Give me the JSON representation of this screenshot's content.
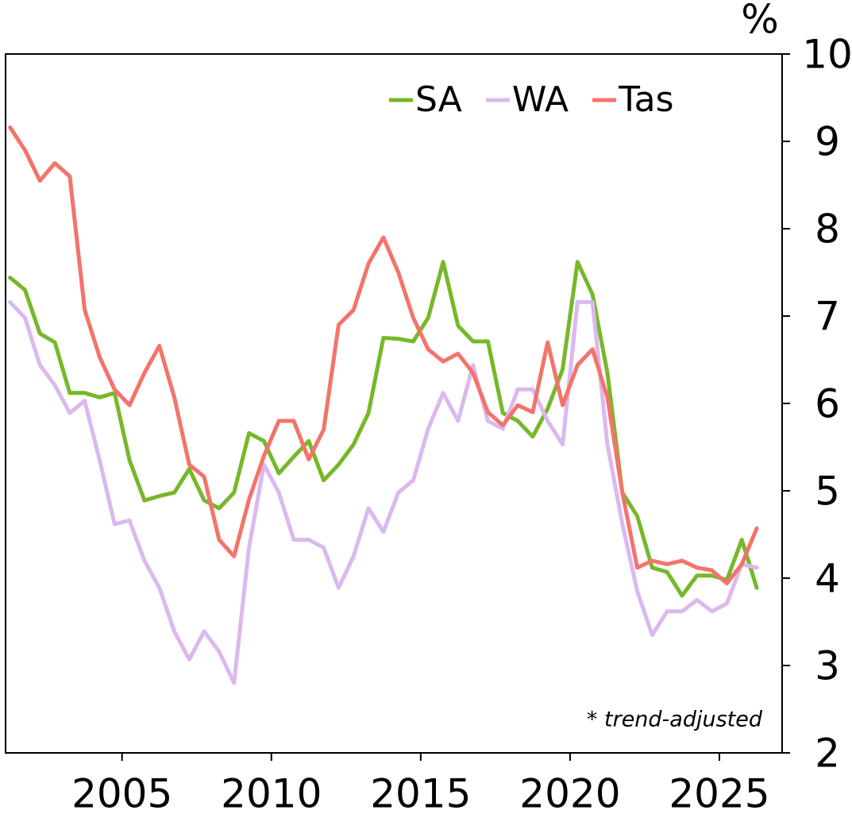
{
  "chart_data": {
    "type": "line",
    "y_unit": "%",
    "note": "* trend-adjusted",
    "x": [
      2001.25,
      2001.75,
      2002.25,
      2002.75,
      2003.25,
      2003.75,
      2004.25,
      2004.75,
      2005.25,
      2005.75,
      2006.25,
      2006.75,
      2007.25,
      2007.75,
      2008.25,
      2008.75,
      2009.25,
      2009.75,
      2010.25,
      2010.75,
      2011.25,
      2011.75,
      2012.25,
      2012.75,
      2013.25,
      2013.75,
      2014.25,
      2014.75,
      2015.25,
      2015.75,
      2016.25,
      2016.75,
      2017.25,
      2017.75,
      2018.25,
      2018.75,
      2019.25,
      2019.75,
      2020.25,
      2020.75,
      2021.25,
      2021.75,
      2022.25,
      2022.75,
      2023.25,
      2023.75,
      2024.25,
      2024.75,
      2025.25,
      2025.75,
      2026.25
    ],
    "series": [
      {
        "name": "SA",
        "color": "#76b82a",
        "values": [
          7.44,
          7.3,
          6.8,
          6.7,
          6.12,
          6.12,
          6.07,
          6.12,
          5.35,
          4.89,
          4.94,
          4.98,
          5.25,
          4.89,
          4.8,
          4.98,
          5.66,
          5.57,
          5.2,
          5.39,
          5.57,
          5.12,
          5.3,
          5.53,
          5.89,
          6.75,
          6.74,
          6.71,
          6.98,
          7.62,
          6.89,
          6.71,
          6.71,
          5.89,
          5.8,
          5.62,
          5.94,
          6.39,
          7.62,
          7.25,
          6.35,
          4.98,
          4.71,
          4.12,
          4.07,
          3.8,
          4.03,
          4.03,
          3.98,
          4.44,
          3.89
        ]
      },
      {
        "name": "WA",
        "color": "#dbb8ee",
        "values": [
          7.16,
          6.98,
          6.44,
          6.21,
          5.89,
          6.03,
          5.35,
          4.62,
          4.66,
          4.2,
          3.89,
          3.39,
          3.07,
          3.39,
          3.16,
          2.8,
          4.35,
          5.3,
          4.98,
          4.44,
          4.44,
          4.35,
          3.89,
          4.25,
          4.8,
          4.53,
          4.98,
          5.12,
          5.71,
          6.12,
          5.8,
          6.44,
          5.8,
          5.71,
          6.16,
          6.16,
          5.8,
          5.53,
          7.16,
          7.16,
          5.53,
          4.62,
          3.85,
          3.35,
          3.62,
          3.62,
          3.75,
          3.62,
          3.71,
          4.16,
          4.12
        ]
      },
      {
        "name": "Tas",
        "color": "#f4736b",
        "values": [
          9.16,
          8.9,
          8.55,
          8.75,
          8.6,
          7.07,
          6.53,
          6.16,
          5.98,
          6.35,
          6.66,
          6.07,
          5.3,
          5.16,
          4.44,
          4.25,
          4.9,
          5.4,
          5.8,
          5.8,
          5.36,
          5.7,
          6.9,
          7.07,
          7.6,
          7.9,
          7.5,
          6.98,
          6.62,
          6.48,
          6.57,
          6.35,
          5.9,
          5.75,
          5.98,
          5.9,
          6.7,
          5.98,
          6.44,
          6.62,
          6.07,
          4.98,
          4.12,
          4.2,
          4.16,
          4.2,
          4.12,
          4.09,
          3.94,
          4.16,
          4.57
        ]
      }
    ],
    "xlim": [
      2001.1,
      2027.1
    ],
    "xticks": [
      2005,
      2010,
      2015,
      2020,
      2025
    ],
    "ylim": [
      2,
      10
    ],
    "yticks": [
      2,
      3,
      4,
      5,
      6,
      7,
      8,
      9,
      10
    ],
    "y_axis_side": "right",
    "legend": "top-right",
    "grid": false
  }
}
